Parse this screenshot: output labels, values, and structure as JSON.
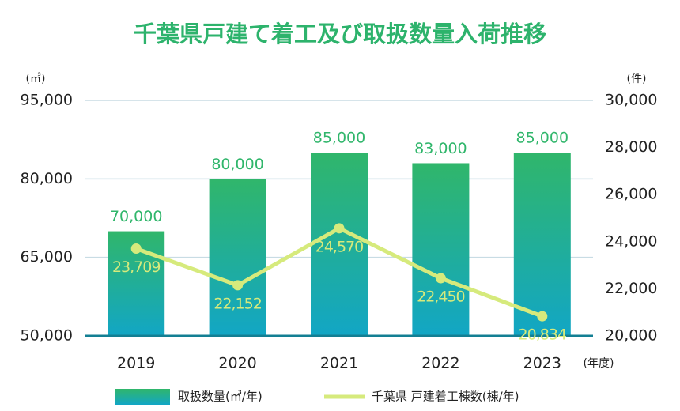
{
  "chart_data": {
    "type": "bar",
    "title": "千葉県戸建て着工及び取扱数量入荷推移",
    "y_unit": "(㎥)",
    "y2_unit": "(件)",
    "x_unit": "(年度)",
    "categories": [
      "2019",
      "2020",
      "2021",
      "2022",
      "2023"
    ],
    "series": [
      {
        "name": "取扱数量(㎥/年)",
        "type": "bar",
        "color": "#30b66b",
        "values": [
          70000,
          80000,
          85000,
          83000,
          85000
        ],
        "value_labels": [
          "70,000",
          "80,000",
          "85,000",
          "83,000",
          "85,000"
        ]
      },
      {
        "name": "千葉県 戸建着工棟数(棟/年)",
        "type": "line",
        "axis": "y2",
        "color": "#d6ea7c",
        "values": [
          23709,
          22152,
          24570,
          22450,
          20834
        ],
        "value_labels": [
          "23,709",
          "22,152",
          "24,570",
          "22,450",
          "20,834"
        ]
      }
    ],
    "ylim": [
      50000,
      95000
    ],
    "yticks": [
      {
        "value": 50000,
        "label": "50,000"
      },
      {
        "value": 65000,
        "label": "65,000"
      },
      {
        "value": 80000,
        "label": "80,000"
      },
      {
        "value": 95000,
        "label": "95,000"
      }
    ],
    "y2lim": [
      20000,
      30000
    ],
    "y2ticks": [
      {
        "value": 20000,
        "label": "20,000"
      },
      {
        "value": 22000,
        "label": "22,000"
      },
      {
        "value": 24000,
        "label": "24,000"
      },
      {
        "value": 26000,
        "label": "26,000"
      },
      {
        "value": 28000,
        "label": "28,000"
      },
      {
        "value": 30000,
        "label": "30,000"
      }
    ],
    "grid": true
  }
}
